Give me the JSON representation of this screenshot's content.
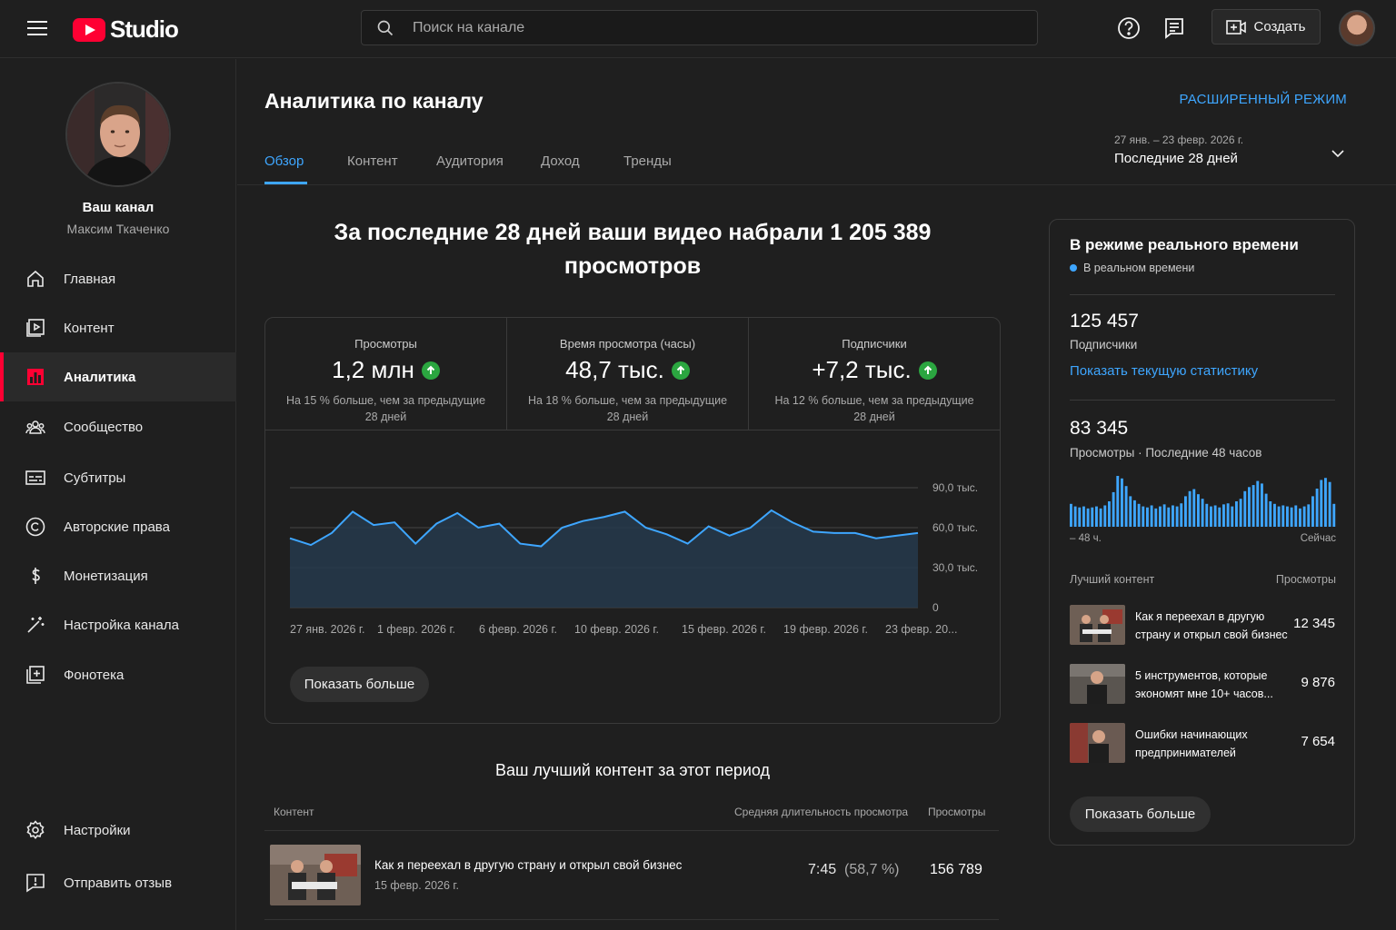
{
  "header": {
    "logo_text": "Studio",
    "search_placeholder": "Поиск на канале",
    "create_label": "Создать"
  },
  "sidebar": {
    "channel_title": "Ваш канал",
    "channel_name": "Максим Ткаченко",
    "items": [
      {
        "label": "Главная",
        "icon": "home-icon"
      },
      {
        "label": "Контент",
        "icon": "content-icon"
      },
      {
        "label": "Аналитика",
        "icon": "analytics-icon",
        "active": true
      },
      {
        "label": "Сообщество",
        "icon": "community-icon"
      },
      {
        "label": "Субтитры",
        "icon": "subtitles-icon"
      },
      {
        "label": "Авторские права",
        "icon": "copyright-icon"
      },
      {
        "label": "Монетизация",
        "icon": "monetization-icon"
      },
      {
        "label": "Настройка канала",
        "icon": "customization-icon"
      },
      {
        "label": "Фонотека",
        "icon": "audio-library-icon"
      }
    ],
    "bottom_items": [
      {
        "label": "Настройки",
        "icon": "settings-icon"
      },
      {
        "label": "Отправить отзыв",
        "icon": "feedback-icon"
      }
    ]
  },
  "main": {
    "title": "Аналитика по каналу",
    "advanced_mode": "РАСШИРЕННЫЙ РЕЖИМ",
    "tabs": [
      "Обзор",
      "Контент",
      "Аудитория",
      "Доход",
      "Тренды"
    ],
    "date_range": {
      "dates": "27 янв. – 23 февр. 2026 г.",
      "label": "Последние 28 дней"
    },
    "headline": "За последние 28 дней ваши видео набрали 1 205 389 просмотров",
    "metrics": [
      {
        "label": "Просмотры",
        "value": "1,2 млн",
        "note": "На 15 % больше, чем за предыдущие 28 дней"
      },
      {
        "label": "Время просмотра (часы)",
        "value": "48,7 тыс.",
        "note": "На 18 % больше, чем за предыдущие 28 дней"
      },
      {
        "label": "Подписчики",
        "value": "+7,2 тыс.",
        "note": "На 12 % больше, чем за предыдущие 28 дней"
      }
    ],
    "show_more": "Показать больше",
    "best_content": {
      "title": "Ваш лучший контент за этот период",
      "col_content": "Контент",
      "col_avg": "Средняя длительность просмотра",
      "col_views": "Просмотры",
      "rows": [
        {
          "title": "Как я переехал в другую страну и открыл свой бизнес",
          "date": "15 февр. 2026 г.",
          "avg_duration": "7:45",
          "avg_percent": "(58,7 %)",
          "views": "156 789"
        }
      ]
    }
  },
  "chart_data": {
    "type": "area",
    "x_tick_labels": [
      "27 янв. 2026 г.",
      "1 февр. 2026 г.",
      "6 февр. 2026 г.",
      "10 февр. 2026 г.",
      "15 февр. 2026 г.",
      "19 февр. 2026 г.",
      "23 февр. 20..."
    ],
    "y_tick_labels": [
      "0",
      "30,0 тыс.",
      "60,0 тыс.",
      "90,0 тыс."
    ],
    "ylim": [
      0,
      90000
    ],
    "grid": true,
    "values": [
      52000,
      47000,
      56000,
      72000,
      62000,
      64000,
      48000,
      63000,
      71000,
      60000,
      63000,
      48000,
      46000,
      60000,
      65000,
      68000,
      72000,
      60000,
      55000,
      48000,
      61000,
      54000,
      60000,
      73000,
      64000,
      57000,
      56000,
      56000,
      52000,
      54000,
      56000
    ],
    "color": "#3ea6ff"
  },
  "realtime": {
    "title": "В режиме реального времени",
    "live_label": "В реальном времени",
    "subscribers_value": "125 457",
    "subscribers_label": "Подписчики",
    "show_live_link": "Показать текущую статистику",
    "views_value": "83 345",
    "views_label": "Просмотры · Последние 48 часов",
    "axis_left": "– 48 ч.",
    "axis_right": "Сейчас",
    "bars": [
      0.45,
      0.4,
      0.38,
      0.4,
      0.36,
      0.38,
      0.4,
      0.36,
      0.42,
      0.5,
      0.68,
      1.0,
      0.95,
      0.8,
      0.6,
      0.52,
      0.45,
      0.4,
      0.38,
      0.42,
      0.36,
      0.4,
      0.44,
      0.38,
      0.42,
      0.4,
      0.46,
      0.6,
      0.7,
      0.74,
      0.64,
      0.55,
      0.45,
      0.4,
      0.42,
      0.38,
      0.44,
      0.46,
      0.4,
      0.5,
      0.55,
      0.7,
      0.78,
      0.82,
      0.9,
      0.85,
      0.65,
      0.5,
      0.45,
      0.4,
      0.42,
      0.4,
      0.38,
      0.42,
      0.36,
      0.4,
      0.44,
      0.6,
      0.75,
      0.92,
      0.96,
      0.88,
      0.45
    ],
    "top_header_left": "Лучший контент",
    "top_header_right": "Просмотры",
    "top_items": [
      {
        "title": "Как я переехал в другую страну и открыл свой бизнес",
        "views": "12 345"
      },
      {
        "title": "5 инструментов, которые экономят мне 10+ часов...",
        "views": "9 876"
      },
      {
        "title": "Ошибки начинающих предпринимателей",
        "views": "7 654"
      }
    ],
    "show_more": "Показать больше"
  }
}
